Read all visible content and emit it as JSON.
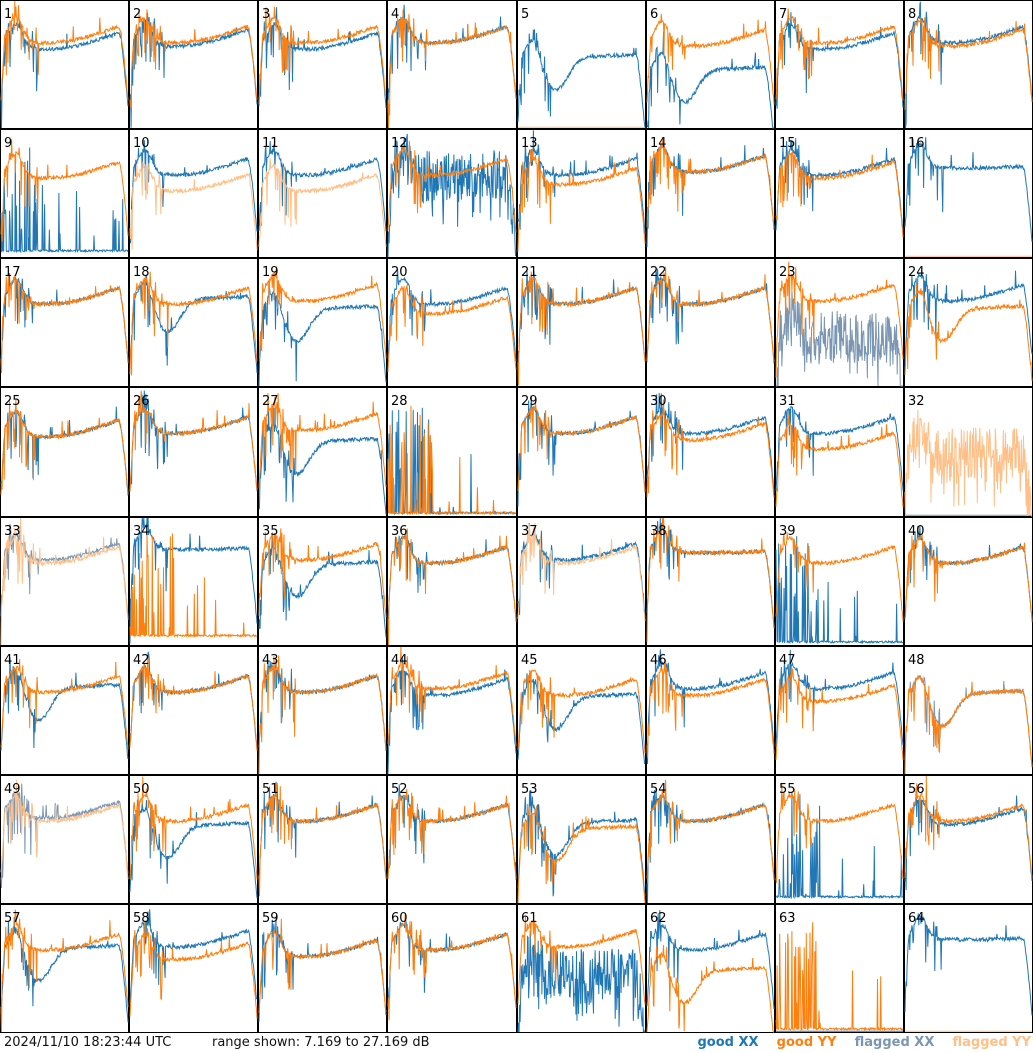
{
  "footer": {
    "timestamp": "2024/11/10 18:23:44 UTC",
    "range_text": "range shown: 7.169 to 27.169 dB"
  },
  "legend": [
    {
      "label": "good XX",
      "color": "#1f77b4"
    },
    {
      "label": "good YY",
      "color": "#ff7f0e"
    },
    {
      "label": "flagged XX",
      "color": "#7a96b2"
    },
    {
      "label": "flagged YY",
      "color": "#ffbf86"
    }
  ],
  "chart_data": {
    "type": "line",
    "grid": {
      "rows": 8,
      "cols": 8
    },
    "units": "dB",
    "ylim": [
      7.169,
      27.169
    ],
    "notes_legend": "per-panel spectra for inputs 1-64; shape codes: s=standard, f=flat, n=noisy, d=dip, z=near-zero spikes, dead=flatline",
    "panels": [
      {
        "id": 1,
        "xx": {
          "shape": "s",
          "level": 20.5,
          "flagged": false
        },
        "yy": {
          "shape": "s",
          "level": 21.5,
          "flagged": false
        }
      },
      {
        "id": 2,
        "xx": {
          "shape": "s",
          "level": 21.0,
          "flagged": false
        },
        "yy": {
          "shape": "s",
          "level": 21.5,
          "flagged": false
        }
      },
      {
        "id": 3,
        "xx": {
          "shape": "s",
          "level": 20.5,
          "flagged": false
        },
        "yy": {
          "shape": "s",
          "level": 21.5,
          "flagged": false
        }
      },
      {
        "id": 4,
        "xx": {
          "shape": "s",
          "level": 21.5,
          "flagged": false
        },
        "yy": {
          "shape": "s",
          "level": 21.5,
          "flagged": false
        }
      },
      {
        "id": 5,
        "xx": {
          "shape": "d",
          "level": 18.0,
          "flagged": false
        },
        "yy": {
          "shape": "dead",
          "level": 7.3,
          "flagged": true
        }
      },
      {
        "id": 6,
        "xx": {
          "shape": "d",
          "level": 16.0,
          "flagged": false
        },
        "yy": {
          "shape": "s",
          "level": 21.0,
          "flagged": false
        }
      },
      {
        "id": 7,
        "xx": {
          "shape": "s",
          "level": 20.5,
          "flagged": false
        },
        "yy": {
          "shape": "s",
          "level": 21.5,
          "flagged": false
        }
      },
      {
        "id": 8,
        "xx": {
          "shape": "s",
          "level": 21.5,
          "flagged": false
        },
        "yy": {
          "shape": "s",
          "level": 21.0,
          "flagged": false
        }
      },
      {
        "id": 9,
        "xx": {
          "shape": "z",
          "level": 8.0,
          "flagged": false
        },
        "yy": {
          "shape": "s",
          "level": 20.5,
          "flagged": false
        }
      },
      {
        "id": 10,
        "xx": {
          "shape": "s",
          "level": 21.0,
          "flagged": false
        },
        "yy": {
          "shape": "s",
          "level": 18.5,
          "flagged": true
        }
      },
      {
        "id": 11,
        "xx": {
          "shape": "s",
          "level": 21.0,
          "flagged": false
        },
        "yy": {
          "shape": "s",
          "level": 18.5,
          "flagged": true
        }
      },
      {
        "id": 12,
        "xx": {
          "shape": "n",
          "level": 20.0,
          "flagged": false
        },
        "yy": {
          "shape": "s",
          "level": 21.0,
          "flagged": false
        }
      },
      {
        "id": 13,
        "xx": {
          "shape": "s",
          "level": 21.0,
          "flagged": false
        },
        "yy": {
          "shape": "s",
          "level": 19.5,
          "flagged": false
        }
      },
      {
        "id": 14,
        "xx": {
          "shape": "s",
          "level": 21.5,
          "flagged": false
        },
        "yy": {
          "shape": "s",
          "level": 21.5,
          "flagged": false
        }
      },
      {
        "id": 15,
        "xx": {
          "shape": "s",
          "level": 21.0,
          "flagged": false
        },
        "yy": {
          "shape": "s",
          "level": 20.5,
          "flagged": false
        }
      },
      {
        "id": 16,
        "xx": {
          "shape": "f",
          "level": 21.5,
          "flagged": false
        },
        "yy": {
          "shape": "dead",
          "level": 7.3,
          "flagged": true
        }
      },
      {
        "id": 17,
        "xx": {
          "shape": "s",
          "level": 21.0,
          "flagged": false
        },
        "yy": {
          "shape": "s",
          "level": 21.0,
          "flagged": false
        }
      },
      {
        "id": 18,
        "xx": {
          "shape": "d",
          "level": 20.5,
          "flagged": false
        },
        "yy": {
          "shape": "s",
          "level": 21.0,
          "flagged": false
        }
      },
      {
        "id": 19,
        "xx": {
          "shape": "d",
          "level": 19.0,
          "flagged": false
        },
        "yy": {
          "shape": "s",
          "level": 21.5,
          "flagged": false
        }
      },
      {
        "id": 20,
        "xx": {
          "shape": "s",
          "level": 21.0,
          "flagged": false
        },
        "yy": {
          "shape": "s",
          "level": 19.5,
          "flagged": false
        }
      },
      {
        "id": 21,
        "xx": {
          "shape": "s",
          "level": 21.0,
          "flagged": false
        },
        "yy": {
          "shape": "s",
          "level": 21.0,
          "flagged": false
        }
      },
      {
        "id": 22,
        "xx": {
          "shape": "s",
          "level": 21.0,
          "flagged": false
        },
        "yy": {
          "shape": "s",
          "level": 21.0,
          "flagged": false
        }
      },
      {
        "id": 23,
        "xx": {
          "shape": "n",
          "level": 15.0,
          "flagged": true
        },
        "yy": {
          "shape": "s",
          "level": 21.5,
          "flagged": false
        }
      },
      {
        "id": 24,
        "xx": {
          "shape": "s",
          "level": 21.5,
          "flagged": false
        },
        "yy": {
          "shape": "d",
          "level": 19.0,
          "flagged": false
        }
      },
      {
        "id": 25,
        "xx": {
          "shape": "s",
          "level": 20.5,
          "flagged": false
        },
        "yy": {
          "shape": "s",
          "level": 20.5,
          "flagged": false
        }
      },
      {
        "id": 26,
        "xx": {
          "shape": "s",
          "level": 21.0,
          "flagged": false
        },
        "yy": {
          "shape": "s",
          "level": 21.0,
          "flagged": false
        }
      },
      {
        "id": 27,
        "xx": {
          "shape": "d",
          "level": 18.5,
          "flagged": false
        },
        "yy": {
          "shape": "s",
          "level": 21.5,
          "flagged": false
        }
      },
      {
        "id": 28,
        "xx": {
          "shape": "z",
          "level": 7.5,
          "flagged": false
        },
        "yy": {
          "shape": "z",
          "level": 7.5,
          "flagged": false
        }
      },
      {
        "id": 29,
        "xx": {
          "shape": "s",
          "level": 21.0,
          "flagged": false
        },
        "yy": {
          "shape": "s",
          "level": 21.0,
          "flagged": false
        }
      },
      {
        "id": 30,
        "xx": {
          "shape": "s",
          "level": 21.0,
          "flagged": false
        },
        "yy": {
          "shape": "s",
          "level": 20.0,
          "flagged": false
        }
      },
      {
        "id": 31,
        "xx": {
          "shape": "s",
          "level": 21.0,
          "flagged": false
        },
        "yy": {
          "shape": "s",
          "level": 18.5,
          "flagged": false
        }
      },
      {
        "id": 32,
        "xx": {
          "shape": "dead",
          "level": 7.3,
          "flagged": true
        },
        "yy": {
          "shape": "n",
          "level": 17.0,
          "flagged": true
        }
      },
      {
        "id": 33,
        "xx": {
          "shape": "s",
          "level": 21.5,
          "flagged": true
        },
        "yy": {
          "shape": "s",
          "level": 21.0,
          "flagged": true
        }
      },
      {
        "id": 34,
        "xx": {
          "shape": "f",
          "level": 22.5,
          "flagged": false
        },
        "yy": {
          "shape": "z",
          "level": 8.5,
          "flagged": false
        }
      },
      {
        "id": 35,
        "xx": {
          "shape": "d",
          "level": 19.5,
          "flagged": false
        },
        "yy": {
          "shape": "s",
          "level": 21.5,
          "flagged": false
        }
      },
      {
        "id": 36,
        "xx": {
          "shape": "s",
          "level": 21.0,
          "flagged": false
        },
        "yy": {
          "shape": "s",
          "level": 21.0,
          "flagged": false
        }
      },
      {
        "id": 37,
        "xx": {
          "shape": "s",
          "level": 21.5,
          "flagged": false
        },
        "yy": {
          "shape": "s",
          "level": 21.0,
          "flagged": true
        }
      },
      {
        "id": 38,
        "xx": {
          "shape": "f",
          "level": 22.0,
          "flagged": false
        },
        "yy": {
          "shape": "f",
          "level": 22.0,
          "flagged": false
        }
      },
      {
        "id": 39,
        "xx": {
          "shape": "z",
          "level": 7.5,
          "flagged": false
        },
        "yy": {
          "shape": "s",
          "level": 21.0,
          "flagged": false
        }
      },
      {
        "id": 40,
        "xx": {
          "shape": "s",
          "level": 21.0,
          "flagged": false
        },
        "yy": {
          "shape": "s",
          "level": 21.0,
          "flagged": false
        }
      },
      {
        "id": 41,
        "xx": {
          "shape": "d",
          "level": 20.5,
          "flagged": false
        },
        "yy": {
          "shape": "s",
          "level": 21.0,
          "flagged": false
        }
      },
      {
        "id": 42,
        "xx": {
          "shape": "s",
          "level": 21.0,
          "flagged": false
        },
        "yy": {
          "shape": "s",
          "level": 21.0,
          "flagged": false
        }
      },
      {
        "id": 43,
        "xx": {
          "shape": "s",
          "level": 21.0,
          "flagged": false
        },
        "yy": {
          "shape": "s",
          "level": 21.0,
          "flagged": false
        }
      },
      {
        "id": 44,
        "xx": {
          "shape": "s",
          "level": 20.5,
          "flagged": false
        },
        "yy": {
          "shape": "s",
          "level": 21.5,
          "flagged": false
        }
      },
      {
        "id": 45,
        "xx": {
          "shape": "d",
          "level": 19.0,
          "flagged": false
        },
        "yy": {
          "shape": "s",
          "level": 20.5,
          "flagged": false
        }
      },
      {
        "id": 46,
        "xx": {
          "shape": "s",
          "level": 21.5,
          "flagged": false
        },
        "yy": {
          "shape": "s",
          "level": 20.5,
          "flagged": false
        }
      },
      {
        "id": 47,
        "xx": {
          "shape": "s",
          "level": 21.5,
          "flagged": false
        },
        "yy": {
          "shape": "s",
          "level": 19.5,
          "flagged": false
        }
      },
      {
        "id": 48,
        "xx": {
          "shape": "d",
          "level": 19.5,
          "flagged": true
        },
        "yy": {
          "shape": "d",
          "level": 19.5,
          "flagged": false
        }
      },
      {
        "id": 49,
        "xx": {
          "shape": "s",
          "level": 21.5,
          "flagged": true
        },
        "yy": {
          "shape": "s",
          "level": 21.0,
          "flagged": true
        }
      },
      {
        "id": 50,
        "xx": {
          "shape": "d",
          "level": 19.0,
          "flagged": false
        },
        "yy": {
          "shape": "s",
          "level": 21.0,
          "flagged": false
        }
      },
      {
        "id": 51,
        "xx": {
          "shape": "s",
          "level": 21.0,
          "flagged": false
        },
        "yy": {
          "shape": "s",
          "level": 21.0,
          "flagged": false
        }
      },
      {
        "id": 52,
        "xx": {
          "shape": "s",
          "level": 21.0,
          "flagged": false
        },
        "yy": {
          "shape": "s",
          "level": 21.0,
          "flagged": false
        }
      },
      {
        "id": 53,
        "xx": {
          "shape": "d",
          "level": 19.5,
          "flagged": false
        },
        "yy": {
          "shape": "d",
          "level": 18.5,
          "flagged": false
        }
      },
      {
        "id": 54,
        "xx": {
          "shape": "s",
          "level": 21.0,
          "flagged": false
        },
        "yy": {
          "shape": "s",
          "level": 21.0,
          "flagged": false
        }
      },
      {
        "id": 55,
        "xx": {
          "shape": "z",
          "level": 8.0,
          "flagged": false
        },
        "yy": {
          "shape": "s",
          "level": 21.0,
          "flagged": false
        }
      },
      {
        "id": 56,
        "xx": {
          "shape": "s",
          "level": 20.5,
          "flagged": false
        },
        "yy": {
          "shape": "s",
          "level": 21.0,
          "flagged": false
        }
      },
      {
        "id": 57,
        "xx": {
          "shape": "d",
          "level": 20.0,
          "flagged": false
        },
        "yy": {
          "shape": "s",
          "level": 21.0,
          "flagged": false
        }
      },
      {
        "id": 58,
        "xx": {
          "shape": "s",
          "level": 21.5,
          "flagged": false
        },
        "yy": {
          "shape": "s",
          "level": 19.5,
          "flagged": false
        }
      },
      {
        "id": 59,
        "xx": {
          "shape": "s",
          "level": 20.0,
          "flagged": false
        },
        "yy": {
          "shape": "s",
          "level": 20.0,
          "flagged": false
        }
      },
      {
        "id": 60,
        "xx": {
          "shape": "s",
          "level": 21.0,
          "flagged": false
        },
        "yy": {
          "shape": "s",
          "level": 21.0,
          "flagged": false
        }
      },
      {
        "id": 61,
        "xx": {
          "shape": "n",
          "level": 16.5,
          "flagged": false
        },
        "yy": {
          "shape": "s",
          "level": 21.5,
          "flagged": false
        }
      },
      {
        "id": 62,
        "xx": {
          "shape": "s",
          "level": 21.0,
          "flagged": false
        },
        "yy": {
          "shape": "d",
          "level": 16.5,
          "flagged": false
        }
      },
      {
        "id": 63,
        "xx": {
          "shape": "dead",
          "level": 7.3,
          "flagged": false
        },
        "yy": {
          "shape": "z",
          "level": 7.5,
          "flagged": false
        }
      },
      {
        "id": 64,
        "xx": {
          "shape": "f",
          "level": 22.0,
          "flagged": false
        },
        "yy": {
          "shape": "dead",
          "level": 7.3,
          "flagged": true
        }
      }
    ]
  }
}
